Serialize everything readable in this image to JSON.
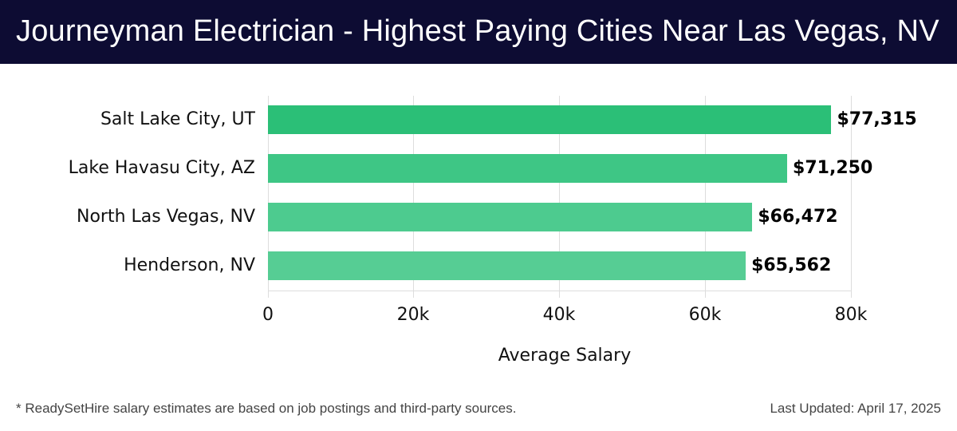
{
  "header": {
    "title": "Journeyman Electrician - Highest Paying Cities Near Las Vegas, NV"
  },
  "chart_data": {
    "type": "bar",
    "orientation": "horizontal",
    "title": "Journeyman Electrician - Highest Paying Cities Near Las Vegas, NV",
    "categories": [
      "Salt Lake City, UT",
      "Lake Havasu City, AZ",
      "North Las Vegas, NV",
      "Henderson, NV"
    ],
    "values": [
      77315,
      71250,
      66472,
      65562
    ],
    "value_labels": [
      "$77,315",
      "$71,250",
      "$66,472",
      "$65,562"
    ],
    "bar_colors": [
      "#2bbf77",
      "#3ec685",
      "#4dcb8f",
      "#56cd94"
    ],
    "xlabel": "Average Salary",
    "ylabel": "",
    "xlim": [
      0,
      80000
    ],
    "xticks": [
      "0",
      "20k",
      "40k",
      "60k",
      "80k"
    ],
    "grid": "vertical",
    "legend": null
  },
  "footer": {
    "note": "* ReadySetHire salary estimates are based on job postings and third-party sources.",
    "updated": "Last Updated: April 17, 2025"
  }
}
